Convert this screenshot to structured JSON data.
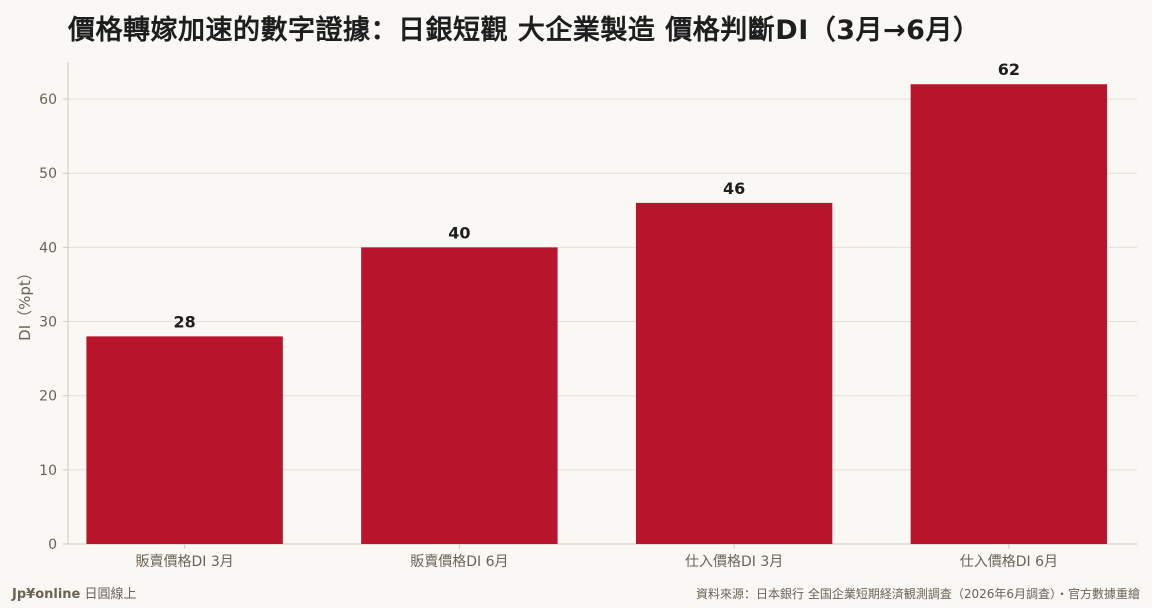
{
  "chart_data": {
    "type": "bar",
    "title": "價格轉嫁加速的數字證據：日銀短觀 大企業製造 價格判斷DI（3月→6月）",
    "categories": [
      "販賣價格DI 3月",
      "販賣價格DI 6月",
      "仕入價格DI 3月",
      "仕入價格DI 6月"
    ],
    "values": [
      28,
      40,
      46,
      62
    ],
    "data_labels": [
      "28",
      "40",
      "46",
      "62"
    ],
    "ylabel": "DI（%pt）",
    "xlabel": "",
    "ylim": [
      0,
      65
    ],
    "yticks": [
      0,
      10,
      20,
      30,
      40,
      50,
      60
    ],
    "grid": true,
    "bar_color": "#b8152c"
  },
  "footer": {
    "brand": "Jp¥online",
    "brand_suffix": "日圓線上",
    "source": "資料來源：日本銀行 全国企業短期経済観測調査（2026年6月調査）・官方數據重繪"
  },
  "colors": {
    "background": "#faf8f4",
    "grid": "#e4e0d8",
    "axis": "#cfcac0",
    "tick_text": "#6b6257",
    "label_text": "#1e1e1e"
  }
}
